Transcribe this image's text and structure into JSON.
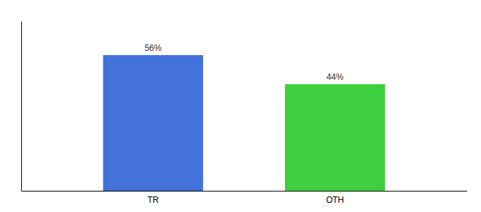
{
  "chart_data": {
    "type": "bar",
    "categories": [
      "TR",
      "OTH"
    ],
    "values": [
      56,
      44
    ],
    "value_labels": [
      "56%",
      "44%"
    ],
    "colors": [
      "#4472db",
      "#3dcf3d"
    ],
    "ylim": [
      0,
      70
    ],
    "data_labels": true,
    "tick_labels": "x"
  }
}
